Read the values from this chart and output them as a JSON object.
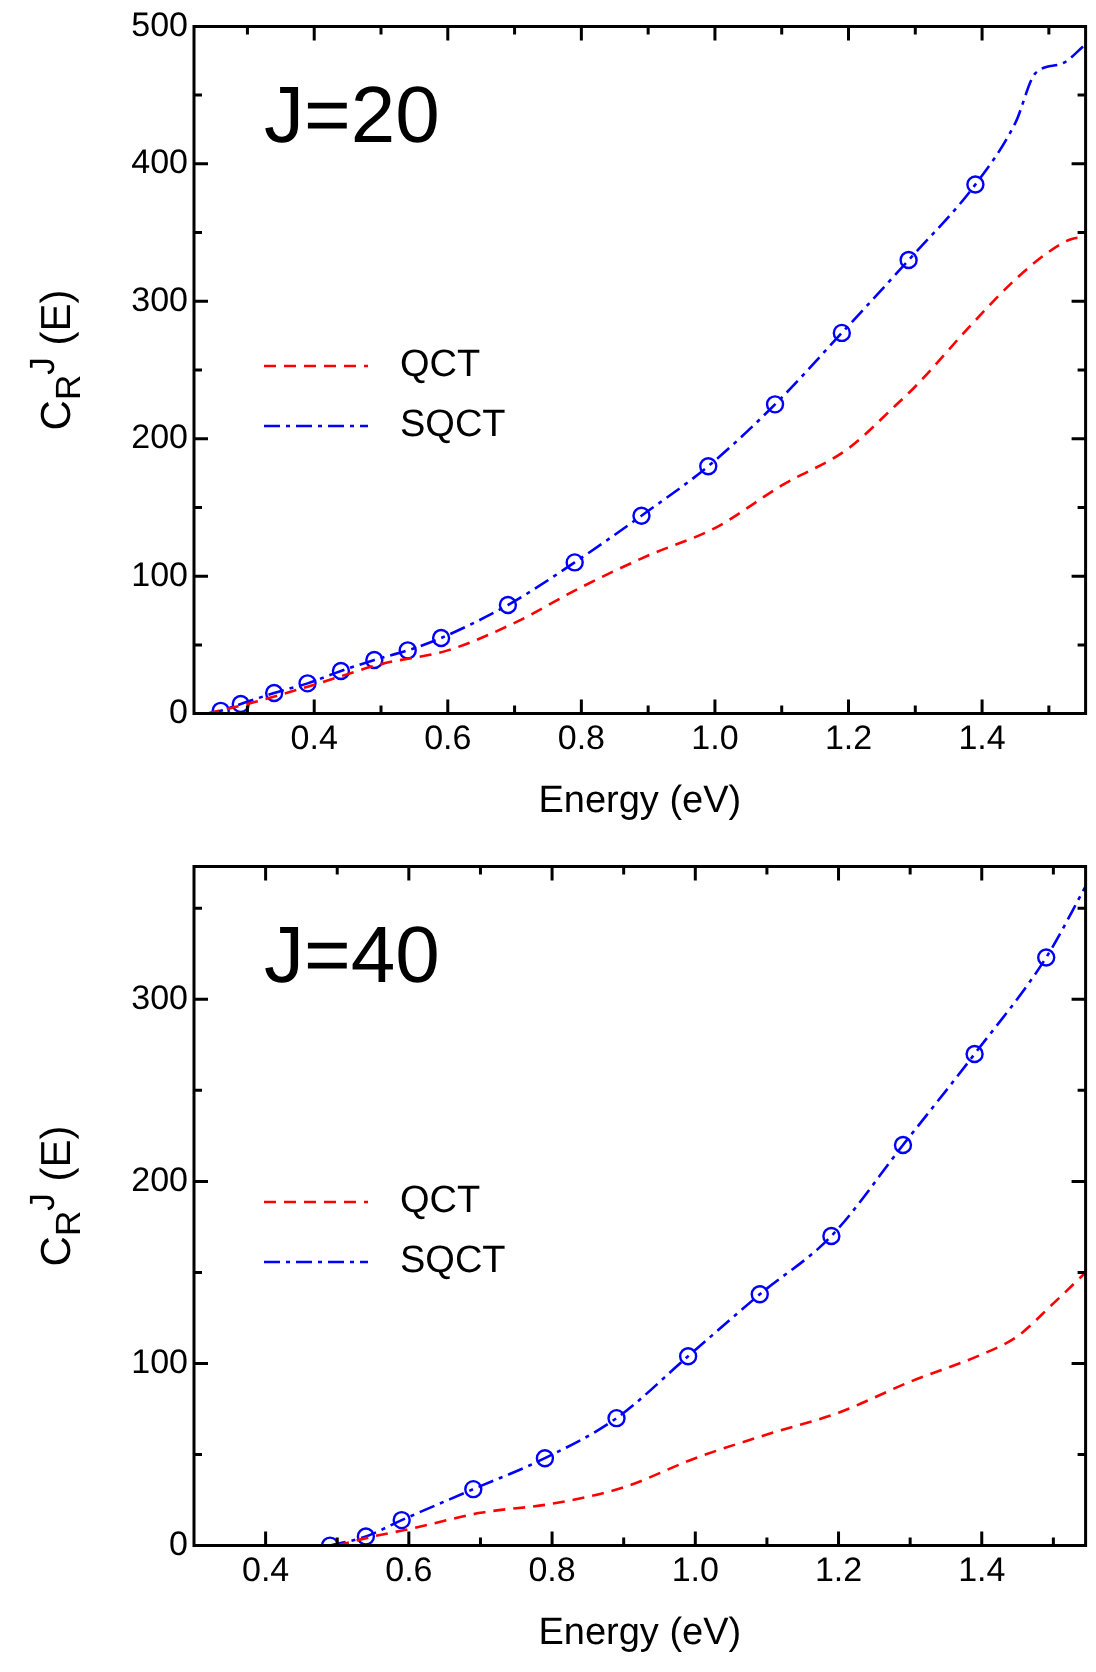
{
  "chart_data": [
    {
      "type": "line",
      "annotations": [
        "J=20"
      ],
      "xlabel": "Energy (eV)",
      "ylabel": "C$_{R}$$^{J}$ (E)",
      "xlim": [
        0.22,
        1.555
      ],
      "ylim": [
        0,
        500
      ],
      "xticks": [
        {
          "value": 0.3,
          "label": null
        },
        0.4,
        {
          "value": 0.5,
          "label": null
        },
        0.6,
        {
          "value": 0.7,
          "label": null
        },
        0.8,
        {
          "value": 0.9,
          "label": null
        },
        {
          "value": 1.0,
          "label": "1.0"
        },
        {
          "value": 1.1,
          "label": null
        },
        1.2,
        {
          "value": 1.3,
          "label": null
        },
        1.4,
        {
          "value": 1.5,
          "label": null
        }
      ],
      "yticks": [
        0,
        {
          "value": 50,
          "label": null
        },
        100,
        {
          "value": 150,
          "label": null
        },
        200,
        {
          "value": 250,
          "label": null
        },
        300,
        {
          "value": 350,
          "label": null
        },
        400,
        {
          "value": 450,
          "label": null
        },
        500
      ],
      "grid": false,
      "legend": "left",
      "series": [
        {
          "name": "QCT",
          "color": "#ff0000",
          "line_style": "dashed",
          "marker": "none",
          "x": [
            0.24,
            0.3,
            0.4,
            0.5,
            0.6,
            0.7,
            0.8,
            0.9,
            1.0,
            1.1,
            1.2,
            1.27,
            1.3,
            1.384,
            1.45,
            1.5,
            1.532,
            1.555
          ],
          "values": [
            0,
            7,
            21,
            36,
            46,
            66,
            92,
            115,
            135,
            166,
            193,
            224,
            238,
            283,
            316,
            336,
            345,
            347
          ]
        },
        {
          "name": "SQCT",
          "color": "#0000ff",
          "line_style": "dashdot",
          "marker": "none",
          "x": [
            0.24,
            0.26,
            0.29,
            0.34,
            0.39,
            0.44,
            0.49,
            0.54,
            0.59,
            0.69,
            0.79,
            0.89,
            0.99,
            1.09,
            1.19,
            1.29,
            1.39,
            1.45,
            1.48,
            1.52,
            1.555
          ],
          "values": [
            0,
            2,
            7,
            15,
            22,
            31,
            39,
            46,
            55,
            79,
            110,
            144,
            180,
            225,
            277,
            330,
            385,
            430,
            466,
            473,
            487
          ]
        },
        {
          "type": "scatter",
          "color": "#0000ff",
          "marker": "circle",
          "x": [
            0.26,
            0.29,
            0.34,
            0.39,
            0.44,
            0.49,
            0.54,
            0.59,
            0.69,
            0.79,
            0.89,
            0.99,
            1.09,
            1.19,
            1.29,
            1.39
          ],
          "values": [
            2,
            7,
            15,
            22,
            31,
            39,
            46,
            55,
            79,
            110,
            144,
            180,
            225,
            277,
            330,
            385
          ]
        }
      ]
    },
    {
      "type": "line",
      "annotations": [
        "J=40"
      ],
      "xlabel": "Energy (eV)",
      "ylabel": "C$_{R}$$^{J}$ (E)",
      "xlim": [
        0.3,
        1.545
      ],
      "ylim": [
        0,
        373
      ],
      "xticks": [
        0.4,
        {
          "value": 0.5,
          "label": null
        },
        0.6,
        {
          "value": 0.7,
          "label": null
        },
        0.8,
        {
          "value": 0.9,
          "label": null
        },
        {
          "value": 1.0,
          "label": "1.0"
        },
        {
          "value": 1.1,
          "label": null
        },
        1.2,
        {
          "value": 1.3,
          "label": null
        },
        1.4,
        {
          "value": 1.5,
          "label": null
        }
      ],
      "yticks": [
        0,
        {
          "value": 50,
          "label": null
        },
        100,
        {
          "value": 150,
          "label": null
        },
        200,
        {
          "value": 250,
          "label": null
        },
        300,
        {
          "value": 350,
          "label": null
        }
      ],
      "grid": false,
      "legend": "left",
      "series": [
        {
          "name": "QCT",
          "color": "#ff0000",
          "line_style": "dashed",
          "marker": "none",
          "x": [
            0.5,
            0.55,
            0.6,
            0.7,
            0.8,
            0.9,
            1.0,
            1.1,
            1.2,
            1.3,
            1.4,
            1.45,
            1.5,
            1.545
          ],
          "values": [
            0,
            5,
            9,
            18,
            23,
            32,
            48,
            61,
            73,
            90,
            105,
            115,
            133,
            150
          ]
        },
        {
          "name": "SQCT",
          "color": "#0000ff",
          "line_style": "dashdot",
          "marker": "none",
          "x": [
            0.49,
            0.54,
            0.59,
            0.69,
            0.79,
            0.89,
            0.99,
            1.09,
            1.19,
            1.29,
            1.39,
            1.49,
            1.545
          ],
          "values": [
            0,
            5,
            14,
            31,
            48,
            70,
            104,
            138,
            170,
            220,
            270,
            323,
            362
          ]
        },
        {
          "type": "scatter",
          "color": "#0000ff",
          "marker": "circle",
          "x": [
            0.49,
            0.54,
            0.59,
            0.69,
            0.79,
            0.89,
            0.99,
            1.09,
            1.19,
            1.29,
            1.39,
            1.49
          ],
          "values": [
            0,
            5,
            14,
            31,
            48,
            70,
            104,
            138,
            170,
            220,
            270,
            323
          ]
        }
      ]
    }
  ]
}
